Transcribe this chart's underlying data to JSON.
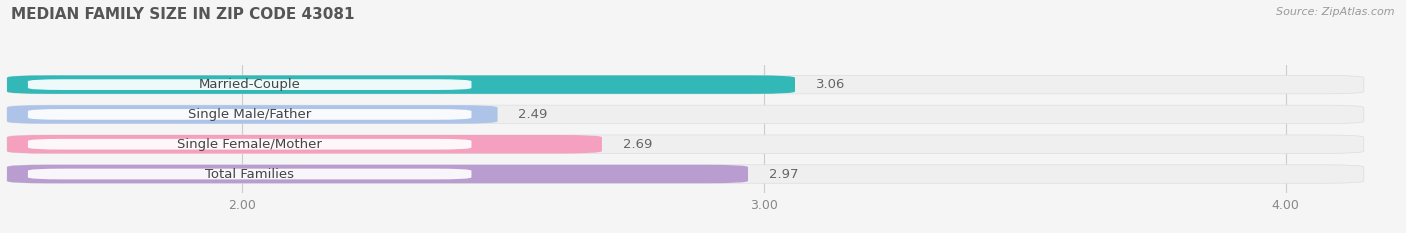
{
  "title": "MEDIAN FAMILY SIZE IN ZIP CODE 43081",
  "source": "Source: ZipAtlas.com",
  "categories": [
    "Married-Couple",
    "Single Male/Father",
    "Single Female/Mother",
    "Total Families"
  ],
  "values": [
    3.06,
    2.49,
    2.69,
    2.97
  ],
  "bar_colors": [
    "#33b8b8",
    "#adc4e8",
    "#f4a0be",
    "#b99dd0"
  ],
  "bar_bg_colors": [
    "#efefef",
    "#efefef",
    "#efefef",
    "#efefef"
  ],
  "xlim": [
    1.55,
    4.15
  ],
  "xstart": 1.55,
  "xticks": [
    2.0,
    3.0,
    4.0
  ],
  "bar_height": 0.62,
  "label_fontsize": 9.5,
  "title_fontsize": 11,
  "value_fontsize": 9.5,
  "tick_fontsize": 9,
  "background_color": "#f5f5f5",
  "label_box_color": "#ffffff",
  "label_text_color": "#444444",
  "value_text_color": "#666666",
  "grid_color": "#cccccc",
  "title_color": "#555555"
}
